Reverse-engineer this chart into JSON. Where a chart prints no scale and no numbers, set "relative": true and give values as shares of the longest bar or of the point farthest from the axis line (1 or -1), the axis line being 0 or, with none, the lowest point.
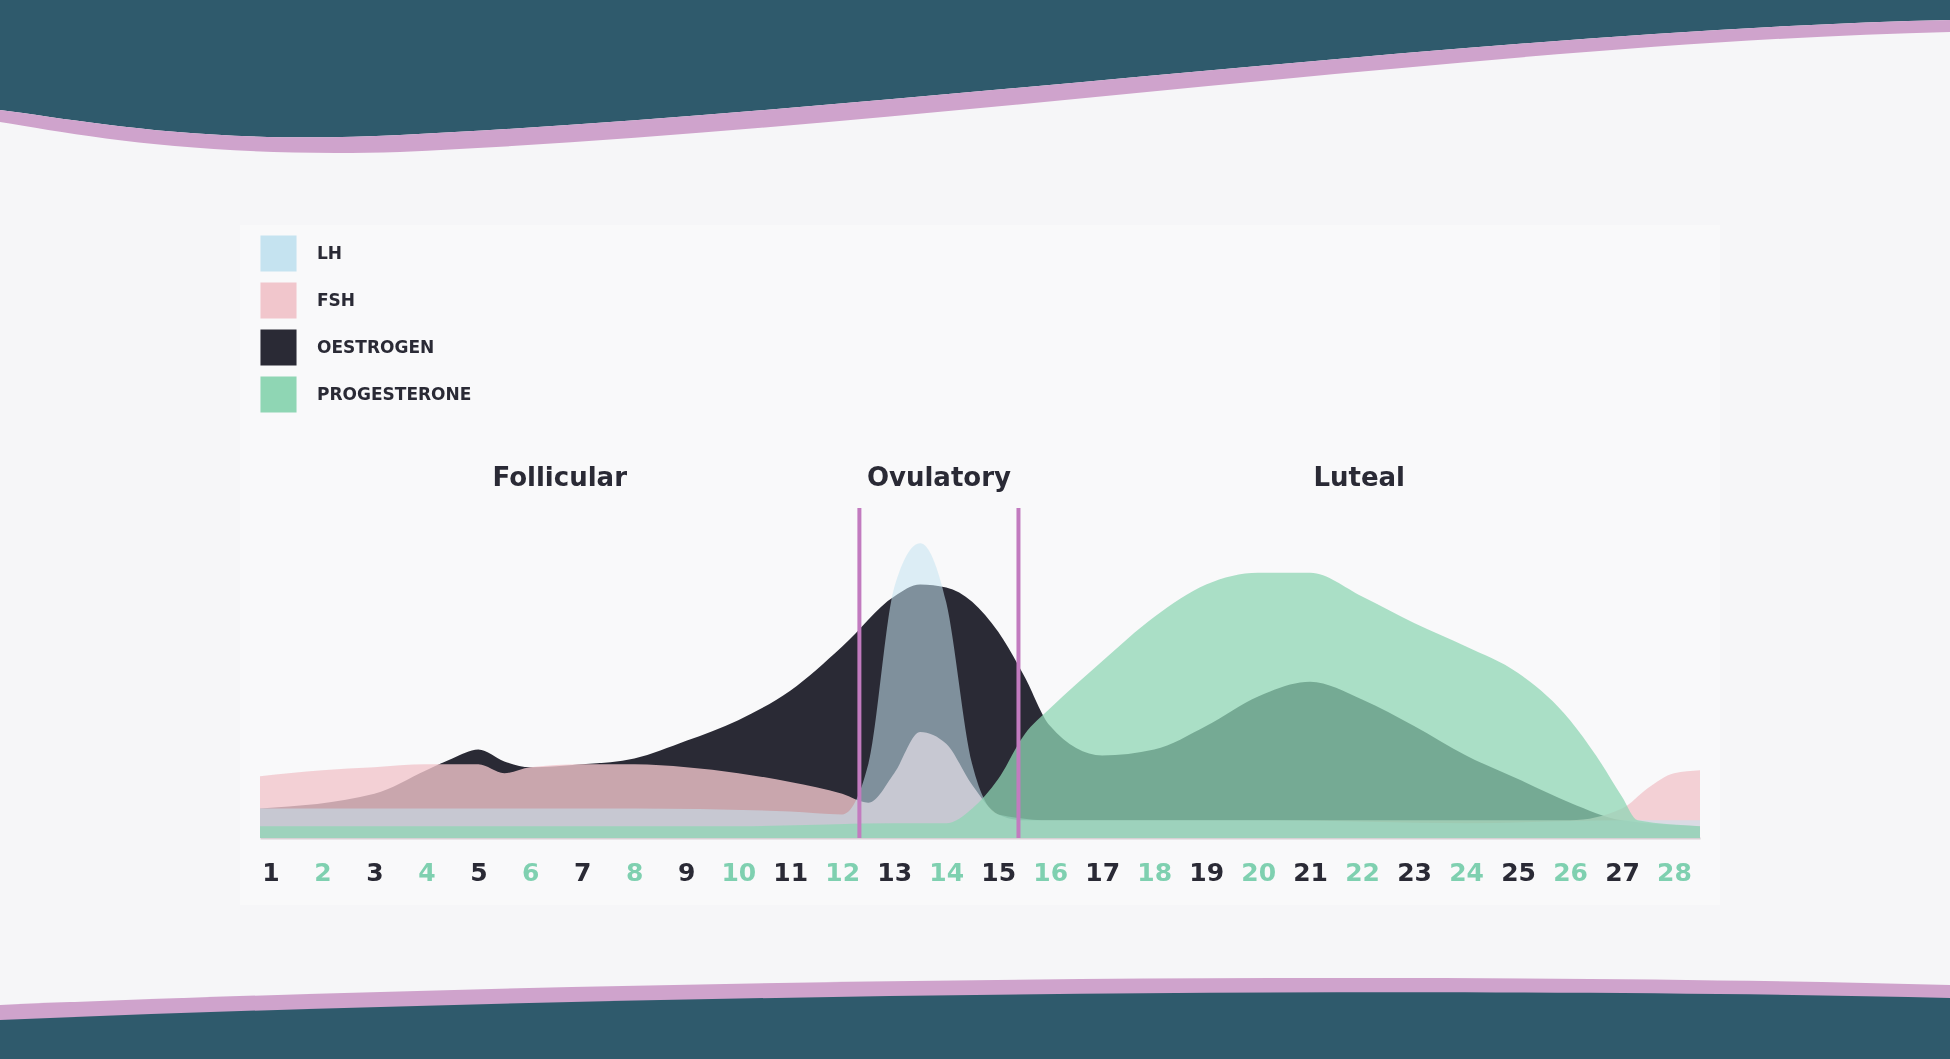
{
  "chart_data": {
    "type": "area",
    "relative": true,
    "xlim": [
      0.8,
      28.5
    ],
    "xticks": [
      1,
      2,
      3,
      4,
      5,
      6,
      7,
      8,
      9,
      10,
      11,
      12,
      13,
      14,
      15,
      16,
      17,
      18,
      19,
      20,
      21,
      22,
      23,
      24,
      25,
      26,
      27,
      28
    ],
    "series": [
      {
        "name": "LH",
        "color": "#c5e3f0",
        "x": [
          0.8,
          4,
          8,
          11,
          12,
          12.5,
          13,
          13.5,
          14,
          14.5,
          15,
          16,
          20,
          24,
          27,
          28.5
        ],
        "values": [
          0.1,
          0.1,
          0.1,
          0.09,
          0.08,
          0.25,
          0.85,
          1,
          0.8,
          0.25,
          0.08,
          0.06,
          0.06,
          0.05,
          0.06,
          0.06
        ]
      },
      {
        "name": "FSH",
        "color": "#f1c6cc",
        "x": [
          0.8,
          2,
          3,
          4,
          5,
          5.5,
          6,
          7,
          8,
          9,
          10,
          11,
          12,
          12.5,
          13,
          13.5,
          14,
          14.5,
          15,
          15.5,
          16,
          18,
          20,
          22,
          24,
          26,
          27,
          27.5,
          28,
          28.5
        ],
        "values": [
          0.21,
          0.23,
          0.24,
          0.25,
          0.25,
          0.22,
          0.24,
          0.25,
          0.25,
          0.24,
          0.22,
          0.19,
          0.15,
          0.12,
          0.22,
          0.36,
          0.32,
          0.18,
          0.08,
          0.06,
          0.06,
          0.06,
          0.06,
          0.06,
          0.06,
          0.06,
          0.1,
          0.17,
          0.22,
          0.23
        ]
      },
      {
        "name": "OESTROGEN",
        "color": "#2a2a35",
        "x": [
          0.8,
          3,
          4,
          4.5,
          5,
          5.5,
          6,
          7,
          8,
          9,
          10,
          11,
          12,
          13,
          13.5,
          14,
          15,
          15.5,
          16,
          17,
          18,
          19,
          20,
          21,
          22,
          23,
          24,
          25,
          26,
          27,
          28.5
        ],
        "values": [
          0.1,
          0.15,
          0.23,
          0.27,
          0.3,
          0.26,
          0.24,
          0.25,
          0.27,
          0.33,
          0.4,
          0.5,
          0.65,
          0.82,
          0.86,
          0.85,
          0.7,
          0.55,
          0.38,
          0.28,
          0.3,
          0.38,
          0.48,
          0.53,
          0.47,
          0.38,
          0.28,
          0.2,
          0.12,
          0.06,
          0.04
        ]
      },
      {
        "name": "PROGESTERONE",
        "color": "#8fd6b4",
        "x": [
          0.8,
          10,
          13,
          14,
          14.5,
          15,
          15.5,
          16,
          17,
          18,
          19,
          20,
          21,
          22,
          23,
          24,
          25,
          26,
          26.5,
          27,
          27.3,
          28.5
        ],
        "values": [
          0.04,
          0.04,
          0.05,
          0.05,
          0.1,
          0.2,
          0.35,
          0.44,
          0.6,
          0.75,
          0.86,
          0.9,
          0.9,
          0.82,
          0.73,
          0.65,
          0.56,
          0.4,
          0.28,
          0.14,
          0.06,
          0.04
        ]
      }
    ],
    "ref_lines": [
      {
        "axis": "x",
        "value": 12.33,
        "color": "#c27bbf"
      },
      {
        "axis": "x",
        "value": 15.39,
        "color": "#c27bbf"
      }
    ],
    "annotations": [
      "Follicular",
      "Ovulatory",
      "Luteal"
    ],
    "legend": "top left"
  }
}
